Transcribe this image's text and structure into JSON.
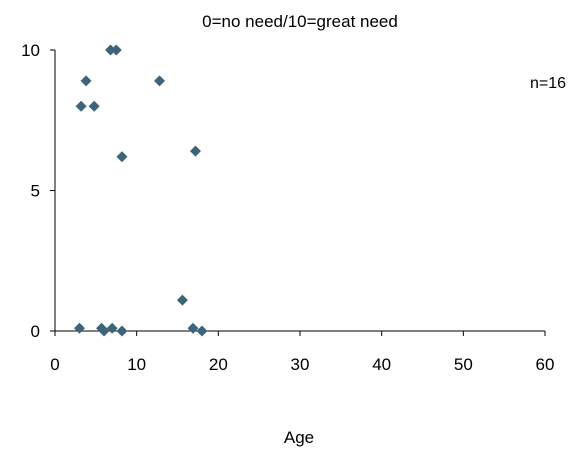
{
  "chart_data": {
    "type": "scatter",
    "title": "0=no need/10=great need",
    "xlabel": "Age",
    "ylabel": "",
    "annotation": "n=16",
    "xlim": [
      0,
      60
    ],
    "ylim": [
      0,
      10
    ],
    "xticks": [
      "0",
      "10",
      "20",
      "30",
      "40",
      "50",
      "60"
    ],
    "yticks": [
      "0",
      "5",
      "10"
    ],
    "xtick_values": [
      0,
      10,
      20,
      30,
      40,
      50,
      60
    ],
    "ytick_values": [
      0,
      5,
      10
    ],
    "grid": false,
    "legend": "none",
    "marker_color": "#3e6479",
    "points": [
      {
        "x": 6.8,
        "y": 10
      },
      {
        "x": 7.5,
        "y": 10
      },
      {
        "x": 3.8,
        "y": 8.9
      },
      {
        "x": 12.8,
        "y": 8.9
      },
      {
        "x": 3.2,
        "y": 8.0
      },
      {
        "x": 4.8,
        "y": 8.0
      },
      {
        "x": 8.2,
        "y": 6.2
      },
      {
        "x": 17.2,
        "y": 6.4
      },
      {
        "x": 15.6,
        "y": 1.1
      },
      {
        "x": 3.0,
        "y": 0.1
      },
      {
        "x": 5.7,
        "y": 0.1
      },
      {
        "x": 6.0,
        "y": 0.0
      },
      {
        "x": 7.0,
        "y": 0.1
      },
      {
        "x": 8.2,
        "y": 0.0
      },
      {
        "x": 16.9,
        "y": 0.1
      },
      {
        "x": 18.0,
        "y": 0.0
      }
    ]
  }
}
